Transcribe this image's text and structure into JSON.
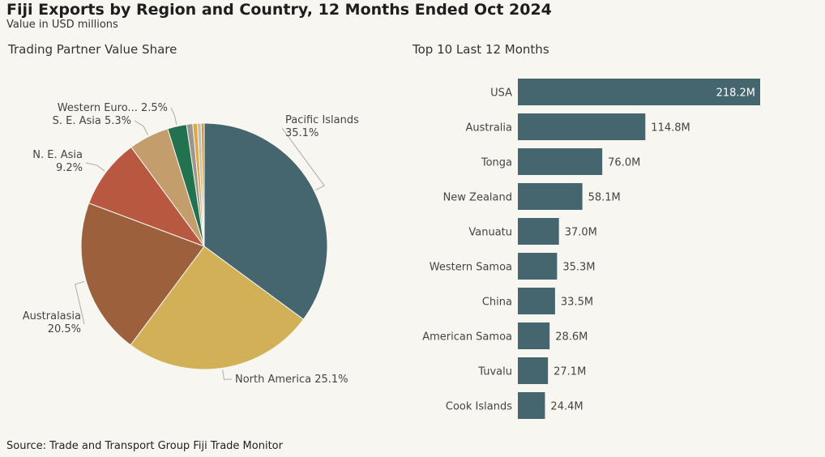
{
  "title": "Fiji Exports by Region and Country, 12 Months Ended Oct 2024",
  "subtitle": "Value in USD millions",
  "source": "Source: Trade and Transport Group Fiji Trade Monitor",
  "chart_data": [
    {
      "type": "pie",
      "title": "Trading Partner Value Share",
      "slices": [
        {
          "label": "Pacific Islands",
          "value": 35.1,
          "display": "35.1%",
          "color": "#46666f"
        },
        {
          "label": "North America",
          "value": 25.1,
          "display": "25.1%",
          "color": "#d1b057"
        },
        {
          "label": "Australasia",
          "value": 20.5,
          "display": "20.5%",
          "color": "#9c603d"
        },
        {
          "label": "N. E. Asia",
          "value": 9.2,
          "display": "9.2%",
          "color": "#b85840"
        },
        {
          "label": "S. E. Asia",
          "value": 5.3,
          "display": "5.3%",
          "color": "#c49d6d"
        },
        {
          "label": "Western Euro...",
          "value": 2.5,
          "display": "2.5%",
          "color": "#22714f"
        },
        {
          "label": "",
          "value": 0.8,
          "display": "",
          "color": "#9c9690"
        },
        {
          "label": "",
          "value": 0.6,
          "display": "",
          "color": "#e0a840"
        },
        {
          "label": "",
          "value": 0.5,
          "display": "",
          "color": "#c6bfb0"
        },
        {
          "label": "",
          "value": 0.4,
          "display": "",
          "color": "#d29a3c"
        }
      ]
    },
    {
      "type": "bar",
      "orientation": "horizontal",
      "title": "Top 10 Last 12 Months",
      "color": "#46666f",
      "categories": [
        "USA",
        "Australia",
        "Tonga",
        "New Zealand",
        "Vanuatu",
        "Western Samoa",
        "China",
        "American Samoa",
        "Tuvalu",
        "Cook Islands"
      ],
      "values": [
        218.2,
        114.8,
        76.0,
        58.1,
        37.0,
        35.3,
        33.5,
        28.6,
        27.1,
        24.4
      ],
      "value_labels": [
        "218.2M",
        "114.8M",
        "76.0M",
        "58.1M",
        "37.0M",
        "35.3M",
        "33.5M",
        "28.6M",
        "27.1M",
        "24.4M"
      ]
    }
  ]
}
